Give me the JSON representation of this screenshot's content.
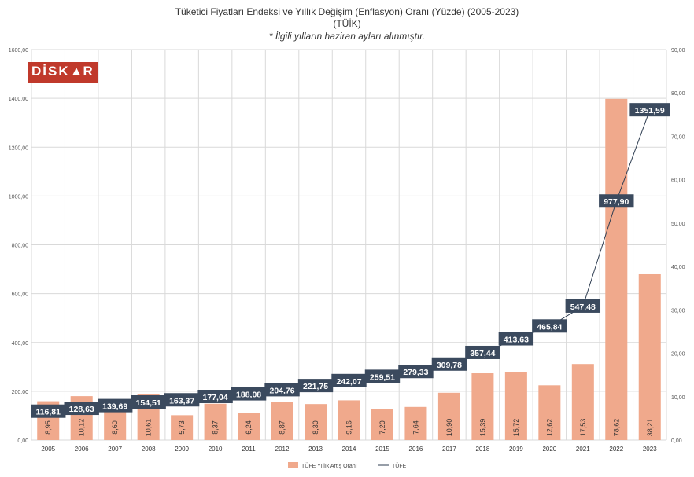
{
  "header": {
    "title": "Tüketici Fiyatları Endeksi ve Yıllık Değişim (Enflasyon) Oranı (Yüzde) (2005-2023)",
    "source": "(TÜİK)",
    "note": "* İlgili yılların haziran ayları alınmıştır."
  },
  "logo": {
    "text": "DİSK AR"
  },
  "colors": {
    "bar": "#f0a98c",
    "line": "#2f3e52",
    "label_bg": "#3b4a5e",
    "grid": "#d9d9d9",
    "axis_text": "#555555"
  },
  "chart_data": {
    "type": "bar",
    "categories": [
      "2005",
      "2006",
      "2007",
      "2008",
      "2009",
      "2010",
      "2011",
      "2012",
      "2013",
      "2014",
      "2015",
      "2016",
      "2017",
      "2018",
      "2019",
      "2020",
      "2021",
      "2022",
      "2023"
    ],
    "series": [
      {
        "name": "TÜFE Yıllık Artış Oranı",
        "type": "bar",
        "axis": "right",
        "values": [
          8.95,
          10.12,
          8.6,
          10.61,
          5.73,
          8.37,
          6.24,
          8.87,
          8.3,
          9.16,
          7.2,
          7.64,
          10.9,
          15.39,
          15.72,
          12.62,
          17.53,
          78.62,
          38.21
        ],
        "labels": [
          "8,95",
          "10,12",
          "8,60",
          "10,61",
          "5,73",
          "8,37",
          "6,24",
          "8,87",
          "8,30",
          "9,16",
          "7,20",
          "7,64",
          "10,90",
          "15,39",
          "15,72",
          "12,62",
          "17,53",
          "78,62",
          "38,21"
        ]
      },
      {
        "name": "TÜFE",
        "type": "line",
        "axis": "left",
        "values": [
          116.81,
          128.63,
          139.69,
          154.51,
          163.37,
          177.04,
          188.08,
          204.76,
          221.75,
          242.07,
          259.51,
          279.33,
          309.78,
          357.44,
          413.63,
          465.84,
          547.48,
          977.9,
          1351.59
        ],
        "labels": [
          "116,81",
          "128,63",
          "139,69",
          "154,51",
          "163,37",
          "177,04",
          "188,08",
          "204,76",
          "221,75",
          "242,07",
          "259,51",
          "279,33",
          "309,78",
          "357,44",
          "413,63",
          "465,84",
          "547,48",
          "977,90",
          "1351,59"
        ]
      }
    ],
    "left_axis": {
      "ylim": [
        0,
        1600
      ],
      "ticks": [
        "0,00",
        "200,00",
        "400,00",
        "600,00",
        "800,00",
        "1000,00",
        "1200,00",
        "1400,00",
        "1600,00"
      ]
    },
    "right_axis": {
      "ylim": [
        0,
        90
      ],
      "ticks": [
        "0,00",
        "10,00",
        "20,00",
        "30,00",
        "40,00",
        "50,00",
        "60,00",
        "70,00",
        "80,00",
        "90,00"
      ]
    },
    "grid": true,
    "legend_position": "bottom"
  }
}
